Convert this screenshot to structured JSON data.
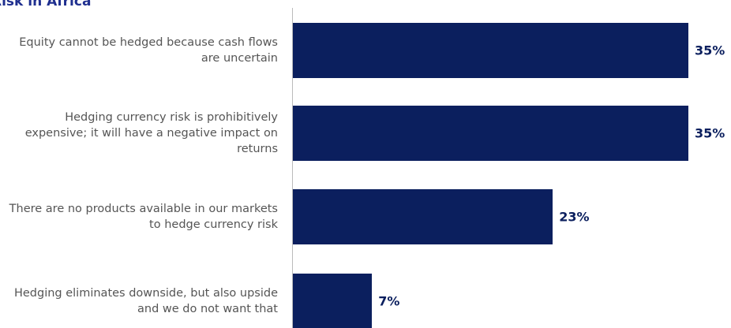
{
  "chart_data": {
    "type": "bar",
    "orientation": "horizontal",
    "title": "Risk in Africa",
    "categories": [
      "Equity cannot be hedged because cash flows are uncertain",
      "Hedging currency risk is prohibitively expensive; it will have a negative impact on returns",
      "There are no products available in our markets to hedge currency risk",
      "Hedging eliminates downside, but also upside and we do not want that"
    ],
    "values": [
      35,
      35,
      23,
      7
    ],
    "value_labels": [
      "35%",
      "35%",
      "23%",
      "7%"
    ],
    "color": "#0b1f5e",
    "xlim": [
      0,
      35
    ]
  }
}
